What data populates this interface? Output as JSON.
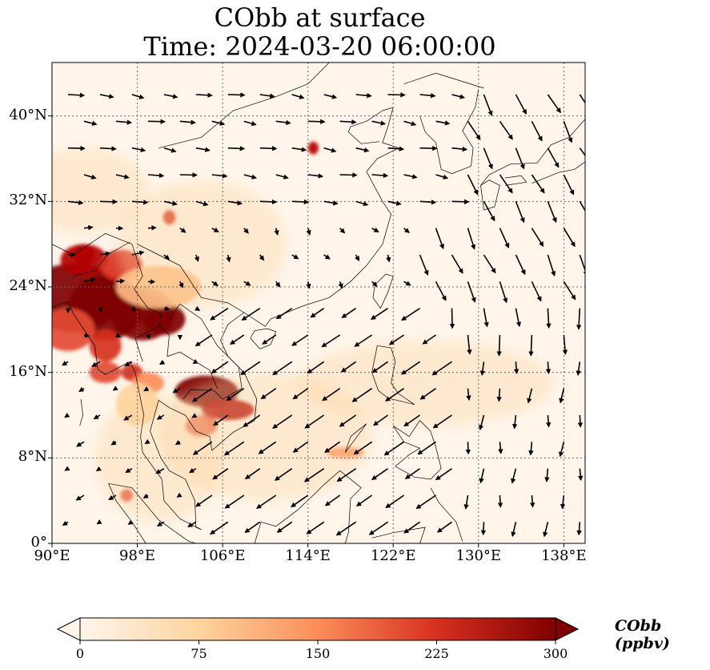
{
  "title": "CObb at surface",
  "time_label": "Time: 2024-03-20 06:00:00",
  "map": {
    "lon_range": [
      90,
      140
    ],
    "lat_range": [
      0,
      45
    ],
    "gridlines": "dotted",
    "x_ticks": [
      "90°E",
      "98°E",
      "106°E",
      "114°E",
      "122°E",
      "130°E",
      "138°E"
    ],
    "y_ticks": [
      "0°",
      "8°N",
      "16°N",
      "24°N",
      "32°N",
      "40°N"
    ],
    "colormap": [
      "#fff5eb",
      "#fdd49e",
      "#fc8d59",
      "#d7301f",
      "#7f0000"
    ]
  },
  "colorbar": {
    "label": "CObb (ppbv)",
    "range": [
      0,
      300
    ],
    "ticks": [
      "0",
      "75",
      "150",
      "225",
      "300"
    ],
    "extend": "both"
  }
}
